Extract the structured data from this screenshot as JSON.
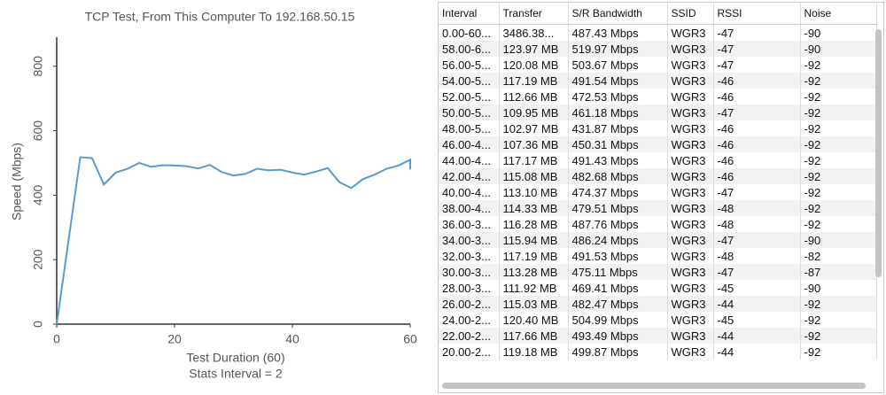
{
  "chart_data": {
    "type": "line",
    "title": "TCP Test,  From This Computer To 192.168.50.15",
    "x_label": "Test Duration (60)",
    "x_label_2": "Stats Interval = 2",
    "y_label": "Speed (Mbps)",
    "x": [
      0,
      4,
      6,
      8,
      10,
      12,
      14,
      16,
      18,
      20,
      22,
      24,
      26,
      28,
      30,
      32,
      34,
      36,
      38,
      40,
      42,
      44,
      46,
      48,
      50,
      52,
      54,
      56,
      58,
      60,
      60
    ],
    "series": [
      {
        "color": "#5a9bcd",
        "values": [
          0,
          518,
          515,
          433,
          470,
          482,
          500,
          488,
          493,
          492,
          490,
          483,
          494,
          472,
          461,
          466,
          482,
          477,
          479,
          470,
          464,
          473,
          484,
          440,
          422,
          450,
          464,
          482,
          492,
          510,
          480
        ]
      }
    ],
    "xlim": [
      0,
      60
    ],
    "xticks": [
      0,
      20,
      40,
      60
    ],
    "ylim": [
      0,
      890
    ],
    "yticks": [
      0,
      200,
      400,
      600,
      800
    ]
  },
  "table": {
    "columns": [
      "Interval",
      "Transfer",
      "S/R Bandwidth",
      "SSID",
      "RSSI",
      "Noise"
    ],
    "rows": [
      [
        "0.00-60...",
        "3486.38...",
        "487.43 Mbps",
        "WGR3",
        "-47",
        "-90"
      ],
      [
        "58.00-6...",
        "123.97 MB",
        "519.97 Mbps",
        "WGR3",
        "-47",
        "-90"
      ],
      [
        "56.00-5...",
        "120.08 MB",
        "503.67 Mbps",
        "WGR3",
        "-47",
        "-92"
      ],
      [
        "54.00-5...",
        "117.19 MB",
        "491.54 Mbps",
        "WGR3",
        "-46",
        "-92"
      ],
      [
        "52.00-5...",
        "112.66 MB",
        "472.53 Mbps",
        "WGR3",
        "-46",
        "-92"
      ],
      [
        "50.00-5...",
        "109.95 MB",
        "461.18 Mbps",
        "WGR3",
        "-47",
        "-92"
      ],
      [
        "48.00-5...",
        "102.97 MB",
        "431.87 Mbps",
        "WGR3",
        "-46",
        "-92"
      ],
      [
        "46.00-4...",
        "107.36 MB",
        "450.31 Mbps",
        "WGR3",
        "-46",
        "-92"
      ],
      [
        "44.00-4...",
        "117.17 MB",
        "491.43 Mbps",
        "WGR3",
        "-46",
        "-92"
      ],
      [
        "42.00-4...",
        "115.08 MB",
        "482.68 Mbps",
        "WGR3",
        "-46",
        "-92"
      ],
      [
        "40.00-4...",
        "113.10 MB",
        "474.37 Mbps",
        "WGR3",
        "-47",
        "-92"
      ],
      [
        "38.00-4...",
        "114.33 MB",
        "479.51 Mbps",
        "WGR3",
        "-48",
        "-92"
      ],
      [
        "36.00-3...",
        "116.28 MB",
        "487.76 Mbps",
        "WGR3",
        "-48",
        "-92"
      ],
      [
        "34.00-3...",
        "115.94 MB",
        "486.24 Mbps",
        "WGR3",
        "-47",
        "-90"
      ],
      [
        "32.00-3...",
        "117.19 MB",
        "491.53 Mbps",
        "WGR3",
        "-48",
        "-82"
      ],
      [
        "30.00-3...",
        "113.28 MB",
        "475.11 Mbps",
        "WGR3",
        "-47",
        "-87"
      ],
      [
        "28.00-3...",
        "111.92 MB",
        "469.41 Mbps",
        "WGR3",
        "-45",
        "-90"
      ],
      [
        "26.00-2...",
        "115.03 MB",
        "482.47 Mbps",
        "WGR3",
        "-44",
        "-92"
      ],
      [
        "24.00-2...",
        "120.40 MB",
        "504.99 Mbps",
        "WGR3",
        "-45",
        "-92"
      ],
      [
        "22.00-2...",
        "117.66 MB",
        "493.49 Mbps",
        "WGR3",
        "-44",
        "-92"
      ],
      [
        "20.00-2...",
        "119.18 MB",
        "499.87 Mbps",
        "WGR3",
        "-44",
        "-92"
      ]
    ]
  }
}
